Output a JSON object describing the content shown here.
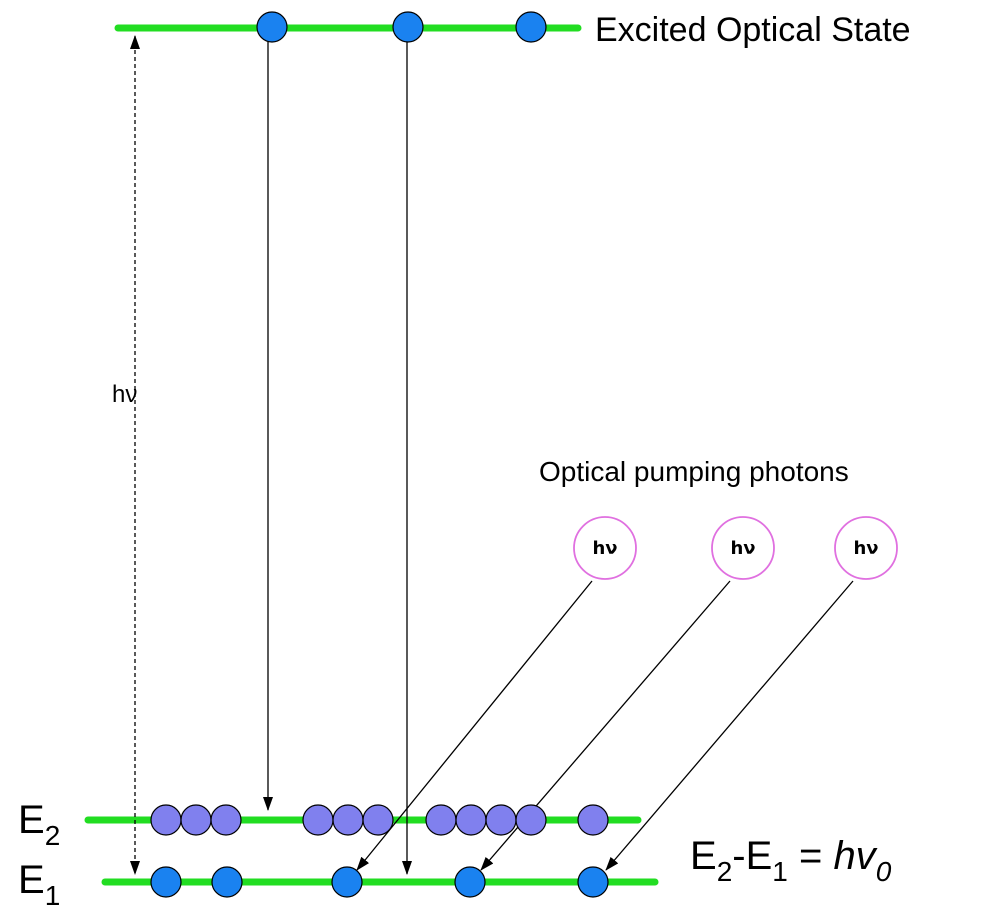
{
  "labels": {
    "excited_state": "Excited Optical State",
    "pumping": "Optical pumping photons",
    "hv_vertical": "hν",
    "e2_main": "E",
    "e2_sub": "2",
    "e1_main": "E",
    "e1_sub": "1",
    "eq_e_a": "E",
    "eq_sub_a": "2",
    "eq_mid": "-E",
    "eq_sub_b": "1",
    "eq_eq": " = ",
    "eq_hv": "hv",
    "eq_sub_0": "0"
  },
  "photons": [
    {
      "label": "hν"
    },
    {
      "label": "hν"
    },
    {
      "label": "hν"
    }
  ],
  "colors": {
    "level_line": "#22dd22",
    "electron": "#1a82f0",
    "e2_electron": "#8080ee",
    "photon_ring": "#e070e0",
    "arrow": "#000000"
  }
}
